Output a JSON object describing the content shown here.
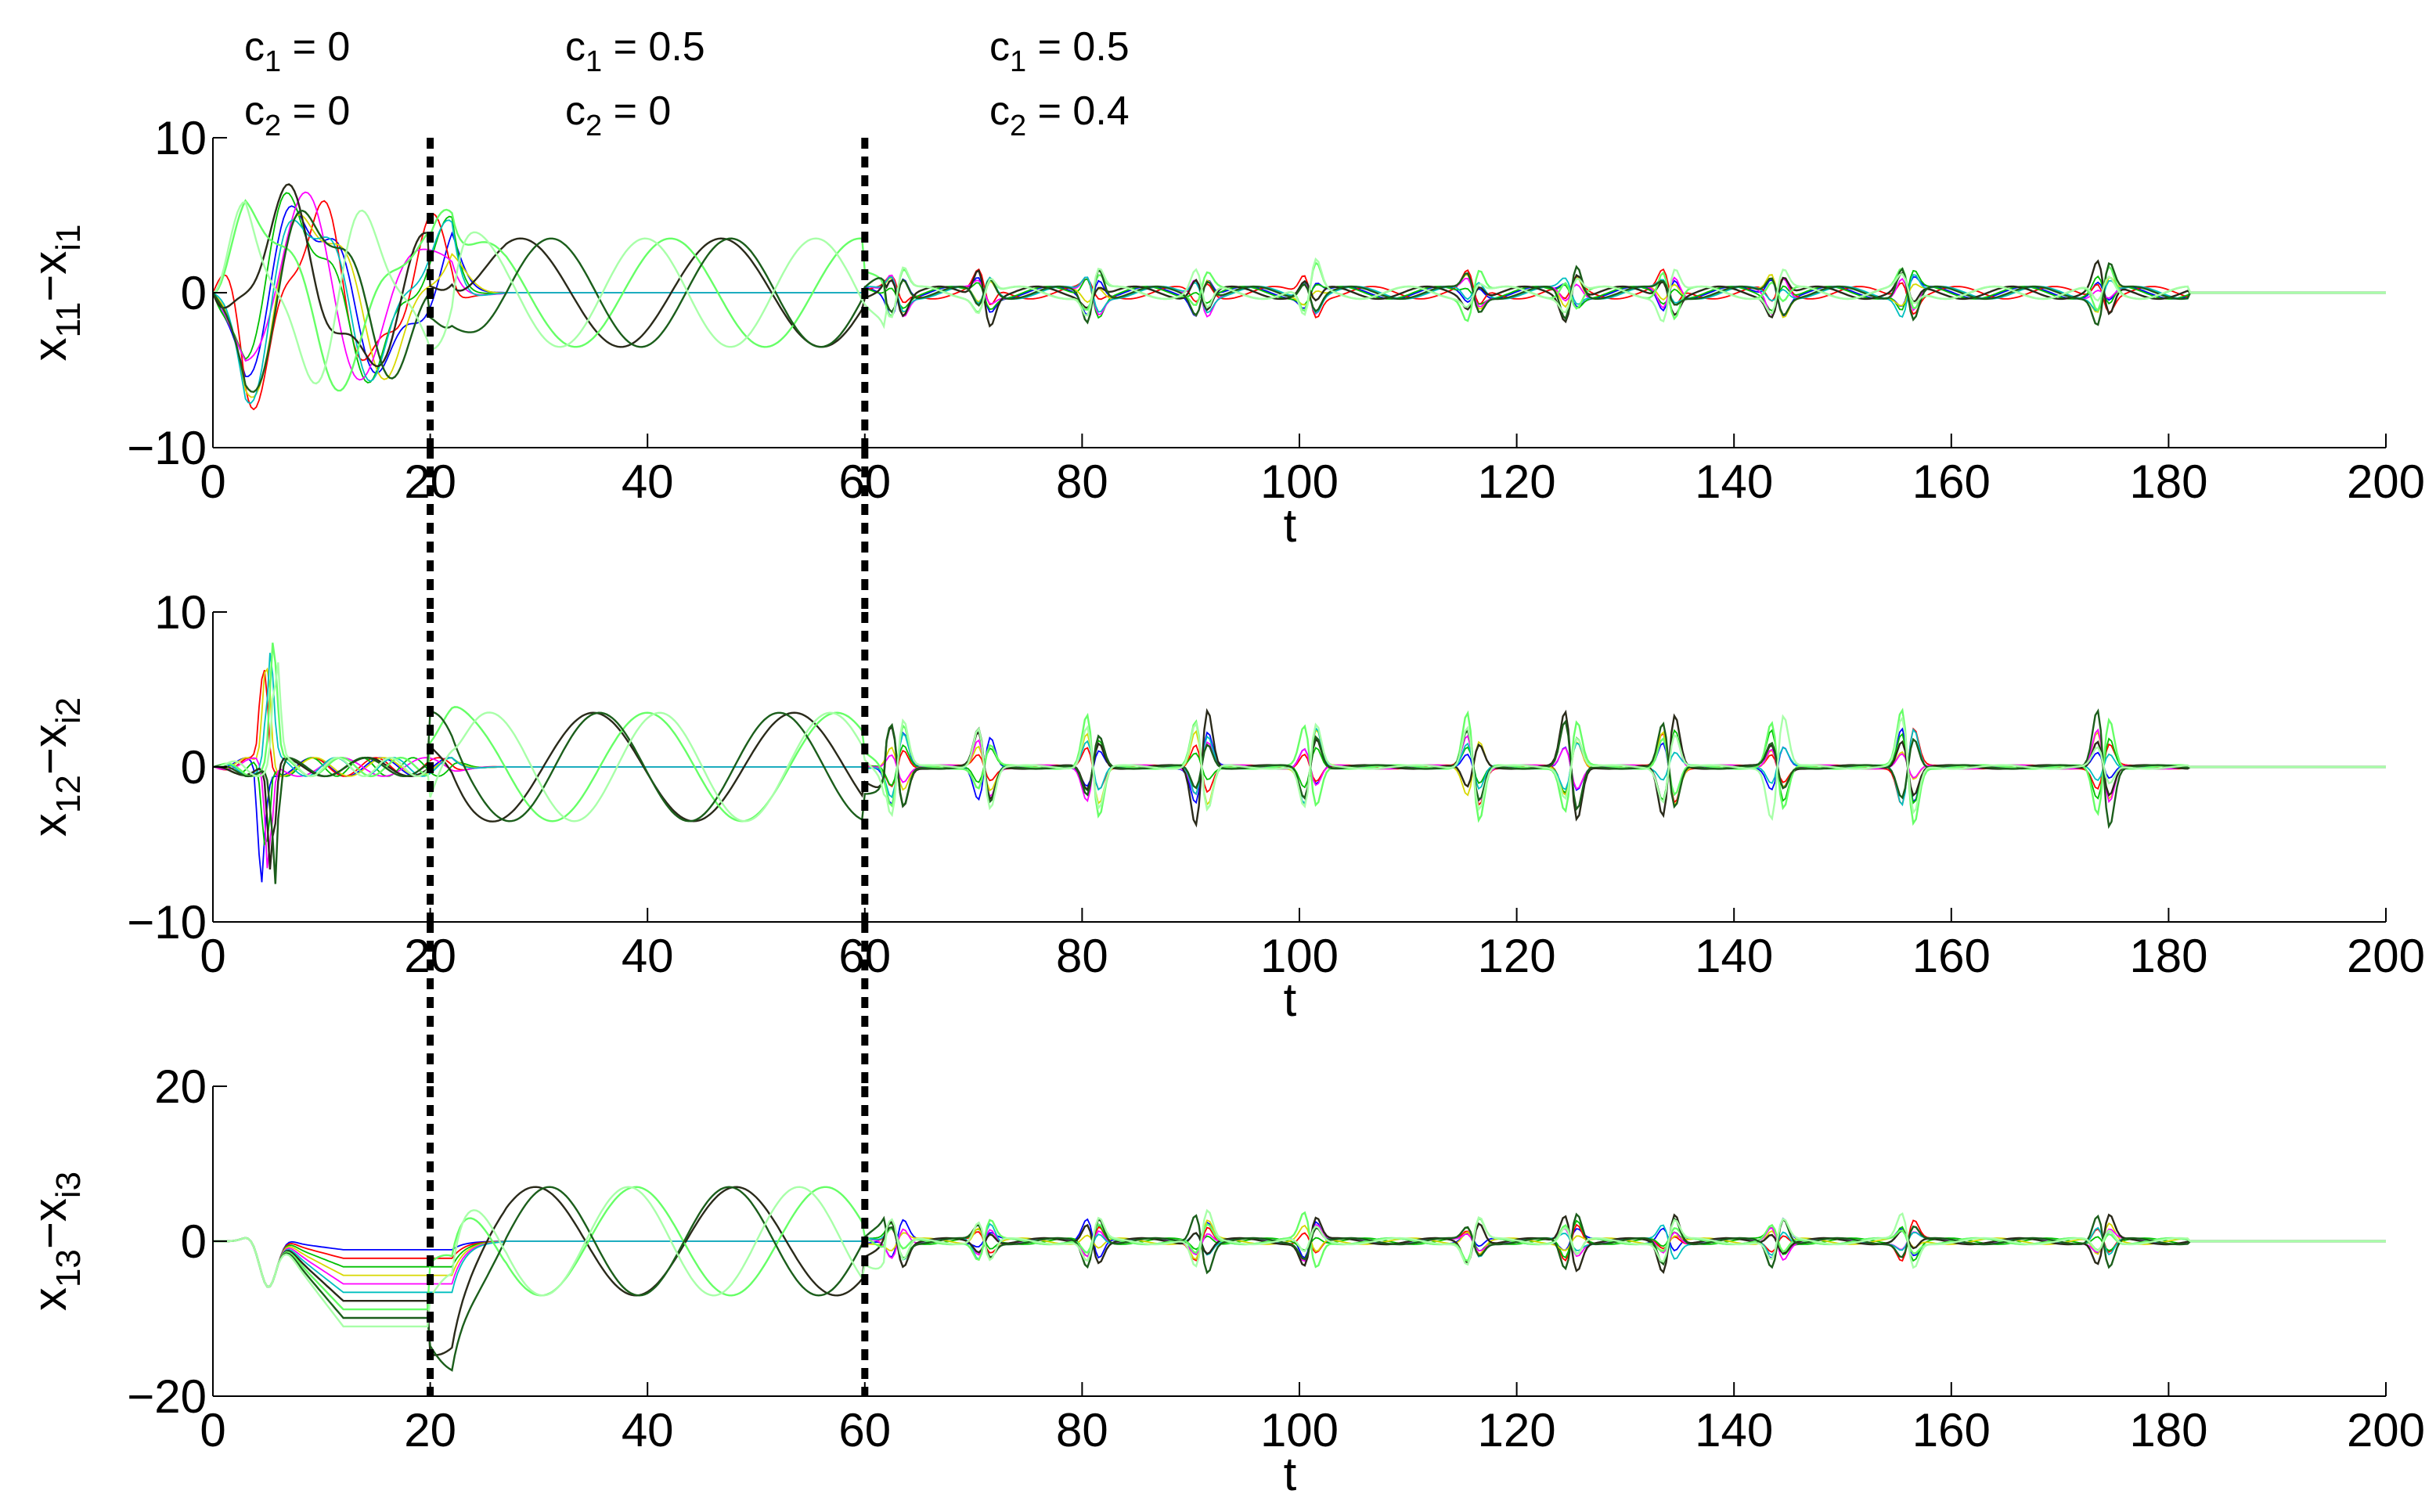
{
  "annotations": [
    {
      "c1_sym": "c",
      "c1_sub": "1",
      "c1_val": " = 0",
      "c2_sym": "c",
      "c2_sub": "2",
      "c2_val": " = 0",
      "t": 0
    },
    {
      "c1_sym": "c",
      "c1_sub": "1",
      "c1_val": " = 0.5",
      "c2_sym": "c",
      "c2_sub": "2",
      "c2_val": " = 0",
      "t": 20
    },
    {
      "c1_sym": "c",
      "c1_sub": "1",
      "c1_val": " = 0.5",
      "c2_sym": "c",
      "c2_sub": "2",
      "c2_val": " = 0.4",
      "t": 60
    }
  ],
  "chart_data": [
    {
      "type": "line",
      "title": "",
      "xlabel": "t",
      "ylabel": "x11−xi1",
      "ylabel_parts": {
        "a": "x",
        "a_sub": "11",
        "mid": "−x",
        "b_sub": "i1"
      },
      "xlim": [
        0,
        200
      ],
      "ylim": [
        -10,
        10
      ],
      "xticks": [
        0,
        20,
        40,
        60,
        80,
        100,
        120,
        140,
        160,
        180,
        200
      ],
      "xtick_labels": [
        "0",
        "20",
        "40",
        "60",
        "80",
        "100",
        "120",
        "140",
        "160",
        "180",
        "200"
      ],
      "yticks": [
        -10,
        0,
        10
      ],
      "ytick_labels": [
        "−10",
        "0",
        "10"
      ],
      "vlines": [
        20,
        60
      ],
      "grid": false,
      "series_colors": [
        "#0000ff",
        "#ff0000",
        "#00c000",
        "#d8d800",
        "#ff00ff",
        "#00bfbf",
        "#2a2a1a",
        "#66ff66",
        "#1b5e1b",
        "#a8ffa8"
      ]
    },
    {
      "type": "line",
      "title": "",
      "xlabel": "t",
      "ylabel": "x12−xi2",
      "ylabel_parts": {
        "a": "x",
        "a_sub": "12",
        "mid": "−x",
        "b_sub": "i2"
      },
      "xlim": [
        0,
        200
      ],
      "ylim": [
        -10,
        10
      ],
      "xticks": [
        0,
        20,
        40,
        60,
        80,
        100,
        120,
        140,
        160,
        180,
        200
      ],
      "xtick_labels": [
        "0",
        "20",
        "40",
        "60",
        "80",
        "100",
        "120",
        "140",
        "160",
        "180",
        "200"
      ],
      "yticks": [
        -10,
        0,
        10
      ],
      "ytick_labels": [
        "−10",
        "0",
        "10"
      ],
      "vlines": [
        20,
        60
      ],
      "grid": false,
      "series_colors": [
        "#0000ff",
        "#ff0000",
        "#00c000",
        "#d8d800",
        "#ff00ff",
        "#00bfbf",
        "#2a2a1a",
        "#66ff66",
        "#1b5e1b",
        "#a8ffa8"
      ]
    },
    {
      "type": "line",
      "title": "",
      "xlabel": "t",
      "ylabel": "x13−xi3",
      "ylabel_parts": {
        "a": "x",
        "a_sub": "13",
        "mid": "−x",
        "b_sub": "i3"
      },
      "xlim": [
        0,
        200
      ],
      "ylim": [
        -20,
        20
      ],
      "xticks": [
        0,
        20,
        40,
        60,
        80,
        100,
        120,
        140,
        160,
        180,
        200
      ],
      "xtick_labels": [
        "0",
        "20",
        "40",
        "60",
        "80",
        "100",
        "120",
        "140",
        "160",
        "180",
        "200"
      ],
      "yticks": [
        -20,
        0,
        20
      ],
      "ytick_labels": [
        "−20",
        "0",
        "20"
      ],
      "vlines": [
        20,
        60
      ],
      "grid": false,
      "series_colors": [
        "#0000ff",
        "#ff0000",
        "#00c000",
        "#d8d800",
        "#ff00ff",
        "#00bfbf",
        "#2a2a1a",
        "#66ff66",
        "#1b5e1b",
        "#a8ffa8"
      ]
    }
  ]
}
